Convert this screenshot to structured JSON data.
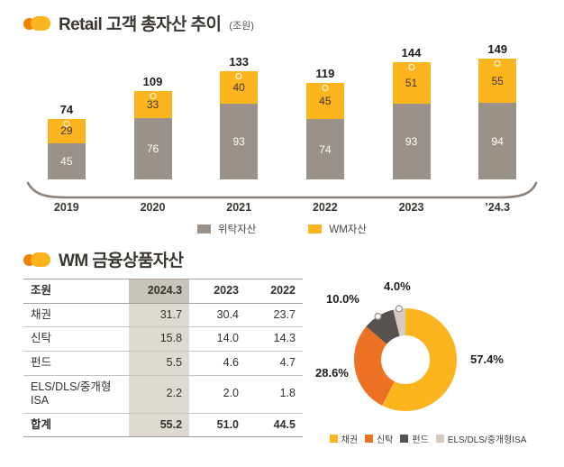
{
  "section1": {
    "title": "Retail 고객 총자산 추이",
    "unit_note": "(조원)"
  },
  "section2": {
    "title": "WM 금융상품자산"
  },
  "chart_data": [
    {
      "type": "bar",
      "stacked": true,
      "title": "Retail 고객 총자산 추이",
      "unit": "조원",
      "categories": [
        "2019",
        "2020",
        "2021",
        "2022",
        "2023",
        "’24.3"
      ],
      "series": [
        {
          "name": "위탁자산",
          "color": "#9a9189",
          "values": [
            45,
            76,
            93,
            74,
            93,
            94
          ]
        },
        {
          "name": "WM자산",
          "color": "#fcb41f",
          "values": [
            29,
            33,
            40,
            45,
            51,
            55
          ]
        }
      ],
      "totals": [
        74,
        109,
        133,
        119,
        144,
        149
      ],
      "legend_position": "bottom",
      "grid": false
    },
    {
      "type": "pie",
      "donut": true,
      "labels": [
        "채권",
        "신탁",
        "펀드",
        "ELS/DLS/중개형ISA"
      ],
      "values": [
        57.4,
        28.6,
        10.0,
        4.0
      ],
      "value_labels": [
        "57.4%",
        "28.6%",
        "10.0%",
        "4.0%"
      ],
      "colors": [
        "#fcb41f",
        "#ec7123",
        "#57524d",
        "#d5cbbe"
      ],
      "legend_position": "bottom"
    },
    {
      "type": "table",
      "unit_label": "조원",
      "headers": [
        "2024.3",
        "2023",
        "2022"
      ],
      "highlighted_column": "2024.3",
      "rows": [
        {
          "label": "채권",
          "values": [
            "31.7",
            "30.4",
            "23.7"
          ]
        },
        {
          "label": "신탁",
          "values": [
            "15.8",
            "14.0",
            "14.3"
          ]
        },
        {
          "label": "펀드",
          "values": [
            "5.5",
            "4.6",
            "4.7"
          ]
        },
        {
          "label": "ELS/DLS/중개형ISA",
          "values": [
            "2.2",
            "2.0",
            "1.8"
          ]
        },
        {
          "label": "합계",
          "values": [
            "55.2",
            "51.0",
            "44.5"
          ],
          "is_total": true
        }
      ]
    }
  ]
}
